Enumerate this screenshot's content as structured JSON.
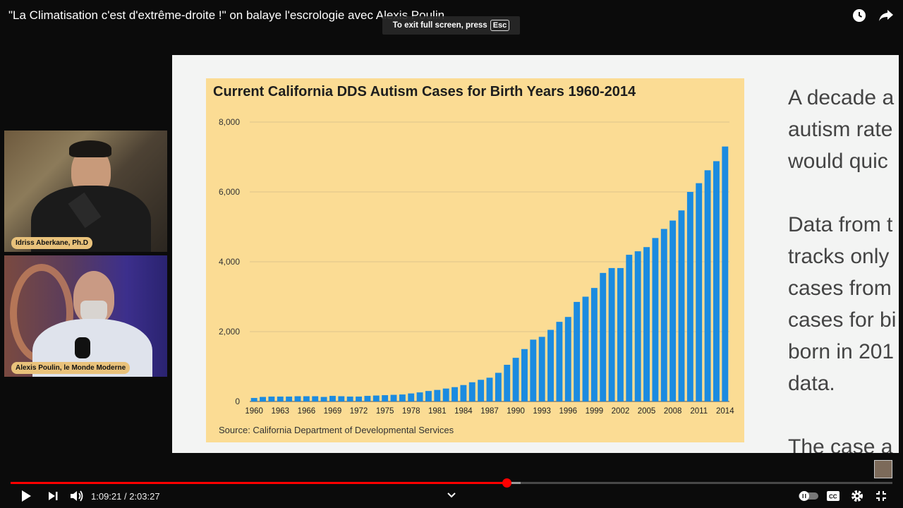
{
  "video": {
    "title": "\"La Climatisation c'est d'extrême-droite !\" on balaye l'escrologie avec Alexis Poulin",
    "toast_text": "To exit full screen, press",
    "toast_key": "Esc"
  },
  "webcams": [
    {
      "label": "Idriss Aberkane, Ph.D"
    },
    {
      "label": "Alexis Poulin, le Monde Moderne"
    }
  ],
  "slide": {
    "text_lines": [
      "A decade a",
      "autism rate",
      "would quic",
      "",
      "Data from t",
      "tracks only",
      "cases from",
      "cases for bi",
      "born in 201",
      "data.",
      "",
      "The case a"
    ]
  },
  "chart_data": {
    "type": "bar",
    "title": "Current California DDS Autism Cases for Birth Years 1960-2014",
    "source": "Source: California Department of Developmental Services",
    "bar_color": "#1b8be0",
    "background": "#fbdc94",
    "ylim": [
      0,
      8000
    ],
    "yticks": [
      "0",
      "2,000",
      "4,000",
      "6,000",
      "8,000"
    ],
    "ytick_values": [
      0,
      2000,
      4000,
      6000,
      8000
    ],
    "xtick_labels": [
      "1960",
      "1963",
      "1966",
      "1969",
      "1972",
      "1975",
      "1978",
      "1981",
      "1984",
      "1987",
      "1990",
      "1993",
      "1996",
      "1999",
      "2002",
      "2005",
      "2008",
      "2011",
      "2014"
    ],
    "x": [
      1960,
      1961,
      1962,
      1963,
      1964,
      1965,
      1966,
      1967,
      1968,
      1969,
      1970,
      1971,
      1972,
      1973,
      1974,
      1975,
      1976,
      1977,
      1978,
      1979,
      1980,
      1981,
      1982,
      1983,
      1984,
      1985,
      1986,
      1987,
      1988,
      1989,
      1990,
      1991,
      1992,
      1993,
      1994,
      1995,
      1996,
      1997,
      1998,
      1999,
      2000,
      2001,
      2002,
      2003,
      2004,
      2005,
      2006,
      2007,
      2008,
      2009,
      2010,
      2011,
      2012,
      2013,
      2014
    ],
    "values": [
      100,
      130,
      140,
      140,
      140,
      150,
      150,
      150,
      130,
      160,
      150,
      140,
      140,
      160,
      170,
      180,
      190,
      200,
      230,
      260,
      300,
      330,
      370,
      410,
      470,
      550,
      620,
      680,
      820,
      1050,
      1250,
      1500,
      1770,
      1850,
      2050,
      2280,
      2420,
      2850,
      3000,
      3250,
      3680,
      3820,
      3820,
      4200,
      4300,
      4420,
      4680,
      4940,
      5180,
      5470,
      6000,
      6250,
      6620,
      6880,
      7300
    ],
    "grid": true
  },
  "player": {
    "current_time": "1:09:21",
    "separator": " / ",
    "duration": "2:03:27",
    "progress_fraction": 0.562,
    "buffered_fraction": 0.578
  }
}
